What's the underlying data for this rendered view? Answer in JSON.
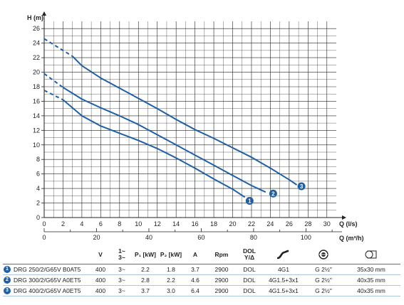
{
  "chart_data": {
    "type": "line",
    "ylabel": "H (m)",
    "xlabel": "Q (l/s)",
    "xlabel2": "Q (m³/h)",
    "xlim": [
      0,
      31
    ],
    "ylim": [
      0,
      27
    ],
    "x_ticks": [
      0,
      2,
      4,
      6,
      8,
      10,
      12,
      14,
      16,
      18,
      20,
      22,
      24,
      26,
      28,
      30
    ],
    "y_ticks": [
      0,
      2,
      4,
      6,
      8,
      10,
      12,
      14,
      16,
      18,
      20,
      22,
      24,
      26
    ],
    "x2_ticks": [
      0,
      20,
      40,
      60,
      80,
      100
    ],
    "grid": true,
    "line_color": "#1f5fa5",
    "series": [
      {
        "marker": "1",
        "dashed": [
          [
            0,
            17.5
          ],
          [
            2,
            16.2
          ]
        ],
        "solid": [
          [
            2,
            16.2
          ],
          [
            4,
            14
          ],
          [
            6,
            12.6
          ],
          [
            8,
            11.6
          ],
          [
            10,
            10.6
          ],
          [
            12,
            9.5
          ],
          [
            14,
            8.2
          ],
          [
            16,
            6.8
          ],
          [
            18,
            5.3
          ],
          [
            20,
            3.9
          ],
          [
            21.3,
            2.8
          ]
        ],
        "end": [
          21.8,
          2.3
        ]
      },
      {
        "marker": "2",
        "dashed": [
          [
            0,
            19.8
          ],
          [
            2,
            17.9
          ]
        ],
        "solid": [
          [
            2,
            17.9
          ],
          [
            4,
            16.3
          ],
          [
            6,
            15.1
          ],
          [
            8,
            14
          ],
          [
            10,
            12.8
          ],
          [
            12,
            11.4
          ],
          [
            14,
            10
          ],
          [
            16,
            8.6
          ],
          [
            18,
            7.2
          ],
          [
            20,
            5.8
          ],
          [
            22,
            4.4
          ],
          [
            23.5,
            3.5
          ]
        ],
        "end": [
          24.3,
          3.3
        ]
      },
      {
        "marker": "3",
        "dashed": [
          [
            0,
            24.6
          ],
          [
            3,
            22.2
          ]
        ],
        "solid": [
          [
            3,
            22.2
          ],
          [
            4,
            20.9
          ],
          [
            6,
            19.2
          ],
          [
            8,
            17.8
          ],
          [
            10,
            16.4
          ],
          [
            12,
            15
          ],
          [
            14,
            13.5
          ],
          [
            16,
            12.1
          ],
          [
            18,
            10.9
          ],
          [
            20,
            9.6
          ],
          [
            22,
            8.3
          ],
          [
            24,
            6.8
          ],
          [
            26,
            5.2
          ],
          [
            26.8,
            4.5
          ]
        ],
        "end": [
          27.3,
          4.3
        ]
      }
    ]
  },
  "table": {
    "headers": {
      "model": "",
      "v": "V",
      "phase_top": "1~",
      "phase_bottom": "3~",
      "p1": "P₁ [kW]",
      "p2": "P₂ [kW]",
      "a": "A",
      "rpm": "Rpm",
      "start_top": "DOL",
      "start_bottom": "Y/Δ"
    },
    "rows": [
      {
        "num": "1",
        "model": "DRG 250/2/G65V B0AT5",
        "v": "400",
        "phase": "3~",
        "p1": "2.2",
        "p2": "1.8",
        "a": "3.7",
        "rpm": "2900",
        "start": "DOL",
        "cable": "4G1",
        "outlet": "G 2½\"",
        "size": "35x30 mm"
      },
      {
        "num": "2",
        "model": "DRG 300/2/G65V A0ET5",
        "v": "400",
        "phase": "3~",
        "p1": "2.8",
        "p2": "2.2",
        "a": "4.6",
        "rpm": "2900",
        "start": "DOL",
        "cable": "4G1.5+3x1",
        "outlet": "G 2½\"",
        "size": "40x35 mm"
      },
      {
        "num": "3",
        "model": "DRG 400/2/G65V A0ET5",
        "v": "400",
        "phase": "3~",
        "p1": "3.7",
        "p2": "3.0",
        "a": "6.4",
        "rpm": "2900",
        "start": "DOL",
        "cable": "4G1.5+3x1",
        "outlet": "G 2½\"",
        "size": "40x35 mm"
      }
    ],
    "icons": {
      "cable": "cable-icon",
      "outlet": "outlet-thread-icon",
      "size": "impeller-passage-icon"
    }
  }
}
